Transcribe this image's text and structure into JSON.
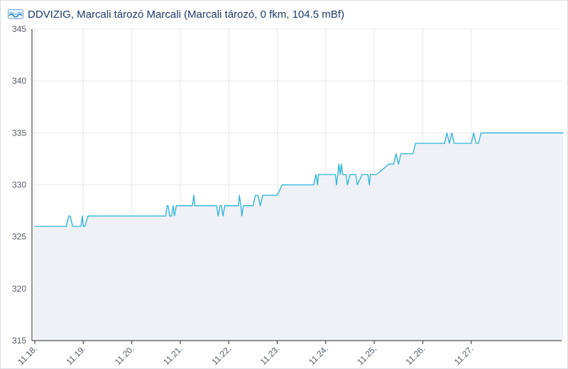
{
  "header": {
    "logo": "DDVIZIG logo",
    "logo_icon": "water-wave-logo-icon",
    "title": "DDVIZIG, Marcali tározó Marcali (Marcali tározó, 0 fkm, 104.5 mBf)"
  },
  "colors": {
    "line": "#27b3d6",
    "area": "#eef1f6",
    "grid": "#e6e8ec",
    "axis": "#2b2b2b",
    "title": "#1e3a6a"
  },
  "chart_data": {
    "type": "area",
    "title": "DDVIZIG, Marcali tározó Marcali (Marcali tározó, 0 fkm, 104.5 mBf)",
    "xlabel": "",
    "ylabel": "",
    "ylim": [
      315,
      345
    ],
    "yticks": [
      315,
      320,
      325,
      330,
      335,
      340,
      345
    ],
    "xlim": [
      0,
      10.9
    ],
    "xticks": [
      0,
      1,
      2,
      3,
      4,
      5,
      6,
      7,
      8,
      9
    ],
    "xtick_labels": [
      "11.18.",
      "11.19.",
      "11.20.",
      "11.21.",
      "11.22.",
      "11.23.",
      "11.24.",
      "11.25.",
      "11.26.",
      "11.27."
    ],
    "grid": true,
    "legend": "none",
    "series": [
      {
        "x": [
          0.0,
          0.65,
          0.7,
          0.73,
          0.78,
          0.8,
          0.95,
          0.98,
          1.0,
          1.03,
          1.1,
          1.13,
          1.15,
          1.18,
          1.2,
          1.3,
          2.5,
          2.7,
          2.73,
          2.75,
          2.78,
          2.82,
          2.85,
          2.88,
          2.92,
          2.95,
          3.25,
          3.28,
          3.3,
          3.32,
          3.35,
          3.75,
          3.78,
          3.82,
          3.85,
          3.88,
          3.92,
          3.95,
          4.2,
          4.22,
          4.25,
          4.27,
          4.3,
          4.35,
          4.5,
          4.55,
          4.6,
          4.65,
          4.7,
          4.72,
          4.75,
          4.8,
          5.0,
          5.1,
          5.75,
          5.8,
          5.83,
          5.85,
          5.88,
          5.9,
          6.2,
          6.22,
          6.25,
          6.27,
          6.3,
          6.32,
          6.35,
          6.37,
          6.4,
          6.42,
          6.45,
          6.5,
          6.6,
          6.62,
          6.65,
          6.75,
          6.85,
          6.87,
          6.9,
          6.92,
          6.95,
          6.98,
          7.0,
          7.02,
          7.05,
          7.3,
          7.4,
          7.45,
          7.5,
          7.55,
          7.6,
          7.65,
          7.7,
          7.75,
          7.8,
          7.85,
          8.2,
          8.25,
          8.3,
          8.35,
          8.4,
          8.45,
          8.5,
          8.55,
          8.6,
          8.65,
          9.0,
          9.05,
          9.1,
          9.15,
          9.2,
          9.25,
          9.3,
          9.35,
          9.4,
          9.45,
          9.5,
          9.55,
          9.6,
          9.65,
          9.7,
          9.75,
          9.8,
          9.85,
          10.9
        ],
        "y": [
          326,
          326,
          327,
          327,
          326,
          326,
          326,
          327,
          326,
          326,
          327,
          327,
          327,
          327,
          327,
          327,
          327,
          327,
          328,
          328,
          327,
          327,
          328,
          327,
          328,
          328,
          328,
          329,
          328,
          328,
          328,
          328,
          327,
          328,
          328,
          327,
          328,
          328,
          328,
          329,
          328,
          327,
          328,
          328,
          328,
          329,
          329,
          328,
          329,
          329,
          329,
          329,
          329,
          330,
          330,
          331,
          330,
          331,
          331,
          331,
          331,
          330,
          331,
          332,
          331,
          332,
          331,
          331,
          331,
          331,
          330,
          331,
          331,
          331,
          330,
          331,
          331,
          331,
          330,
          331,
          331,
          331,
          331,
          331,
          331,
          332,
          332,
          333,
          332,
          333,
          333,
          333,
          333,
          333,
          333,
          334,
          334,
          334,
          334,
          334,
          334,
          334,
          335,
          334,
          335,
          334,
          334,
          335,
          334,
          334,
          335,
          335,
          335,
          335,
          335,
          335,
          335,
          335,
          335,
          335,
          335,
          335,
          335,
          335,
          335
        ]
      }
    ]
  }
}
